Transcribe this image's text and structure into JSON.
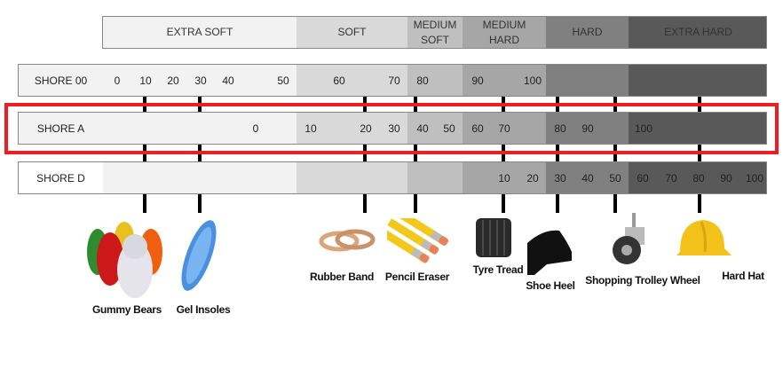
{
  "categories": [
    "EXTRA SOFT",
    "SOFT",
    "MEDIUM SOFT",
    "MEDIUM HARD",
    "HARD",
    "EXTRA HARD"
  ],
  "category_colors": [
    "#f2f2f2",
    "#d9d9d9",
    "#bfbfbf",
    "#a6a6a6",
    "#808080",
    "#595959"
  ],
  "highlight_color": "#ee1c25",
  "scales": {
    "shore00": {
      "label": "SHORE 00",
      "ticks": [
        "0",
        "10",
        "20",
        "30",
        "40",
        "50",
        "60",
        "70",
        "80",
        "90",
        "100"
      ]
    },
    "shoreA": {
      "label": "SHORE A",
      "ticks": [
        "0",
        "10",
        "20",
        "30",
        "40",
        "50",
        "60",
        "70",
        "80",
        "90",
        "100"
      ],
      "highlighted": true
    },
    "shoreD": {
      "label": "SHORE D",
      "ticks": [
        "10",
        "20",
        "30",
        "40",
        "50",
        "60",
        "70",
        "80",
        "90",
        "100"
      ]
    }
  },
  "examples": [
    "Gummy Bears",
    "Gel Insoles",
    "Rubber Band",
    "Pencil Eraser",
    "Tyre Tread",
    "Shoe Heel",
    "Shopping Trolley Wheel",
    "Hard Hat"
  ]
}
